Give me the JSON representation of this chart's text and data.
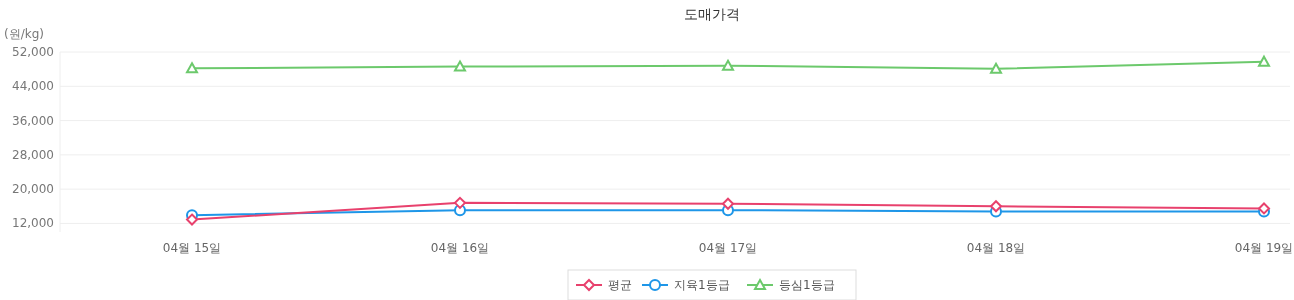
{
  "chart_data": {
    "type": "line",
    "title": "도매가격",
    "ylabel": "(원/kg)",
    "categories": [
      "04월 15일",
      "04월 16일",
      "04월 17일",
      "04월 18일",
      "04월 19일"
    ],
    "ylim": [
      10000,
      52000
    ],
    "yticks": [
      {
        "value": 12000,
        "label": "12,000"
      },
      {
        "value": 20000,
        "label": "20,000"
      },
      {
        "value": 28000,
        "label": "28,000"
      },
      {
        "value": 36000,
        "label": "36,000"
      },
      {
        "value": 44000,
        "label": "44,000"
      },
      {
        "value": 52000,
        "label": "52,000"
      }
    ],
    "grid": "y",
    "legend": "bottom",
    "line_style": "solid",
    "series": [
      {
        "name": "평균",
        "color": "#e8416d",
        "marker": "diamond",
        "values": [
          12900,
          16800,
          16600,
          16000,
          15500
        ]
      },
      {
        "name": "지육1등급",
        "color": "#1e96e8",
        "marker": "circle",
        "values": [
          13900,
          15100,
          15100,
          14800,
          14800
        ]
      },
      {
        "name": "등심1등급",
        "color": "#6cc96c",
        "marker": "triangle",
        "values": [
          48200,
          48600,
          48800,
          48100,
          49750
        ]
      }
    ]
  }
}
